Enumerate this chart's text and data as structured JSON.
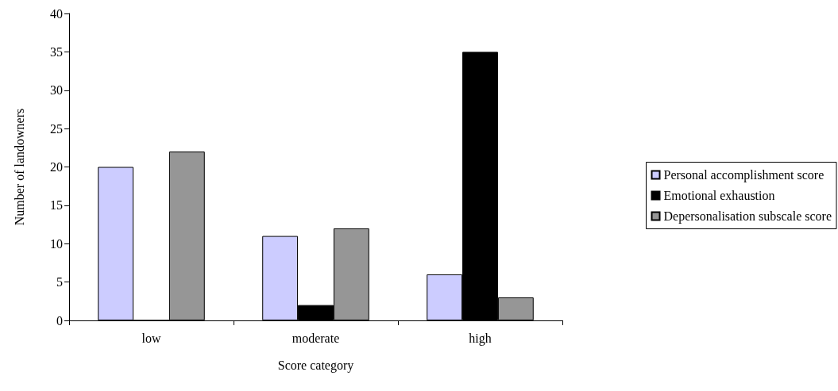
{
  "chart_data": {
    "type": "bar",
    "xlabel": "Score category",
    "ylabel": "Number of landowners",
    "categories": [
      "low",
      "moderate",
      "high"
    ],
    "series": [
      {
        "name": "Personal accomplishment score",
        "color": "#ccccff",
        "values": [
          20,
          11,
          6
        ]
      },
      {
        "name": "Emotional exhaustion",
        "color": "#000000",
        "values": [
          0,
          2,
          35
        ]
      },
      {
        "name": "Depersonalisation subscale score",
        "color": "#969696",
        "values": [
          22,
          12,
          3
        ]
      }
    ],
    "ylim": [
      0,
      40
    ],
    "yticks": [
      0,
      5,
      10,
      15,
      20,
      25,
      30,
      35,
      40
    ],
    "grid": false,
    "legend": "right"
  }
}
